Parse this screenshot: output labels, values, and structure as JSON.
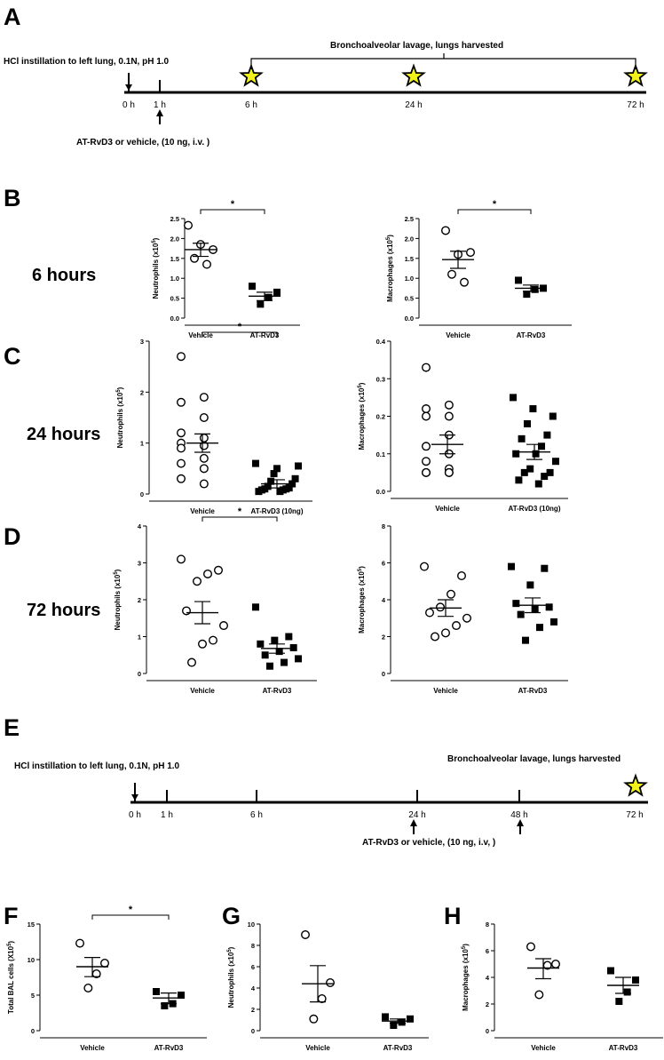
{
  "panel_letters": [
    "A",
    "B",
    "C",
    "D",
    "E",
    "F",
    "G",
    "H"
  ],
  "row_labels": {
    "b": "6 hours",
    "c": "24 hours",
    "d": "72 hours"
  },
  "timeline_a": {
    "instillation": "HCl instillation to left lung, 0.1N, pH 1.0",
    "treatment": "AT-RvD3 or vehicle, (10 ng, i.v. )",
    "harvest": "Bronchoalveolar lavage, lungs harvested",
    "ticks": [
      "0 h",
      "1 h",
      "6 h",
      "24 h",
      "72 h"
    ]
  },
  "timeline_e": {
    "instillation": "HCl instillation to left lung, 0.1N, pH 1.0",
    "treatment": "AT-RvD3 or vehicle, (10 ng, i.v, )",
    "harvest": "Bronchoalveolar lavage, lungs harvested",
    "ticks": [
      "0 h",
      "1 h",
      "6 h",
      "24 h",
      "48 h",
      "72 h"
    ]
  },
  "colors": {
    "star_fill": "#f2f21a",
    "marker": "#000000"
  },
  "chart_data": [
    {
      "id": "b1",
      "type": "scatter",
      "ylabel": "Neutrophils (x10^5)",
      "ylim": [
        0,
        2.5
      ],
      "yticks": [
        "0.0",
        "0.5",
        "1.0",
        "1.5",
        "2.0",
        "2.5"
      ],
      "categories": [
        "Vehicle",
        "AT-RvD3"
      ],
      "significance": "*",
      "series": [
        {
          "values": [
            2.33,
            1.85,
            1.72,
            1.5,
            1.35
          ],
          "mean": 1.72,
          "sem_low": 1.55,
          "sem_high": 1.88
        },
        {
          "values": [
            0.8,
            0.65,
            0.52,
            0.35
          ],
          "mean": 0.55,
          "sem_low": 0.44,
          "sem_high": 0.65
        }
      ]
    },
    {
      "id": "b2",
      "type": "scatter",
      "ylabel": "Macrophages (x10^5)",
      "ylim": [
        0,
        2.5
      ],
      "yticks": [
        "0.0",
        "0.5",
        "1.0",
        "1.5",
        "2.0",
        "2.5"
      ],
      "categories": [
        "Vehicle",
        "AT-RvD3"
      ],
      "significance": "*",
      "series": [
        {
          "values": [
            2.2,
            1.6,
            1.65,
            1.1,
            0.9
          ],
          "mean": 1.47,
          "sem_low": 1.25,
          "sem_high": 1.68
        },
        {
          "values": [
            0.95,
            0.75,
            0.72,
            0.6
          ],
          "mean": 0.75,
          "sem_low": 0.67,
          "sem_high": 0.83
        }
      ]
    },
    {
      "id": "c1",
      "type": "scatter",
      "ylabel": "Neutrophils (x10^5)",
      "ylim": [
        0,
        3
      ],
      "yticks": [
        "0",
        "1",
        "2",
        "3"
      ],
      "categories": [
        "Vehicle",
        "AT-RvD3 (10ng)"
      ],
      "significance": "*",
      "series": [
        {
          "values": [
            2.7,
            1.9,
            1.8,
            1.5,
            1.2,
            1.1,
            1.0,
            0.95,
            0.9,
            0.7,
            0.6,
            0.5,
            0.3,
            0.2
          ],
          "mean": 1.0,
          "sem_low": 0.82,
          "sem_high": 1.18
        },
        {
          "values": [
            0.6,
            0.5,
            0.55,
            0.4,
            0.3,
            0.25,
            0.2,
            0.15,
            0.12,
            0.1,
            0.1,
            0.08,
            0.08,
            0.05,
            0.05
          ],
          "mean": 0.2,
          "sem_low": 0.12,
          "sem_high": 0.28
        }
      ]
    },
    {
      "id": "c2",
      "type": "scatter",
      "ylabel": "Macrophages (x10^5)",
      "ylim": [
        0,
        0.4
      ],
      "yticks": [
        "0.0",
        "0.1",
        "0.2",
        "0.3",
        "0.4"
      ],
      "categories": [
        "Vehicle",
        "AT-RvD3 (10ng)"
      ],
      "significance": "",
      "series": [
        {
          "values": [
            0.33,
            0.23,
            0.22,
            0.2,
            0.2,
            0.15,
            0.12,
            0.1,
            0.08,
            0.06,
            0.05,
            0.05,
            0.05,
            0.05
          ],
          "mean": 0.125,
          "sem_low": 0.1,
          "sem_high": 0.15
        },
        {
          "values": [
            0.25,
            0.22,
            0.2,
            0.18,
            0.15,
            0.14,
            0.12,
            0.1,
            0.1,
            0.08,
            0.06,
            0.05,
            0.05,
            0.04,
            0.03,
            0.02
          ],
          "mean": 0.105,
          "sem_low": 0.085,
          "sem_high": 0.125
        }
      ]
    },
    {
      "id": "d1",
      "type": "scatter",
      "ylabel": "Neutrophils (x10^5)",
      "ylim": [
        0,
        4
      ],
      "yticks": [
        "0",
        "1",
        "2",
        "3",
        "4"
      ],
      "categories": [
        "Vehicle",
        "AT-RvD3"
      ],
      "significance": "*",
      "series": [
        {
          "values": [
            3.1,
            2.8,
            2.7,
            2.5,
            1.7,
            1.3,
            0.9,
            0.8,
            0.3
          ],
          "mean": 1.65,
          "sem_low": 1.35,
          "sem_high": 1.95
        },
        {
          "values": [
            1.8,
            1.0,
            0.9,
            0.8,
            0.7,
            0.6,
            0.5,
            0.4,
            0.3,
            0.2
          ],
          "mean": 0.68,
          "sem_low": 0.55,
          "sem_high": 0.8
        }
      ]
    },
    {
      "id": "d2",
      "type": "scatter",
      "ylabel": "Macrophages (x10^5)",
      "ylim": [
        0,
        8
      ],
      "yticks": [
        "0",
        "2",
        "4",
        "6",
        "8"
      ],
      "categories": [
        "Vehicle",
        "AT-RvD3"
      ],
      "significance": "",
      "series": [
        {
          "values": [
            5.8,
            5.3,
            4.3,
            3.6,
            3.3,
            3.0,
            2.6,
            2.2,
            2.0
          ],
          "mean": 3.55,
          "sem_low": 3.1,
          "sem_high": 4.0
        },
        {
          "values": [
            5.8,
            5.7,
            4.8,
            3.8,
            3.6,
            3.5,
            3.2,
            2.8,
            2.5,
            1.8
          ],
          "mean": 3.7,
          "sem_low": 3.3,
          "sem_high": 4.1
        }
      ]
    },
    {
      "id": "f",
      "type": "scatter",
      "ylabel": "Total BAL cells (X10^5)",
      "ylim": [
        0,
        15
      ],
      "yticks": [
        "0",
        "5",
        "10",
        "15"
      ],
      "categories": [
        "Vehicle",
        "AT-RvD3"
      ],
      "significance": "*",
      "series": [
        {
          "values": [
            12.3,
            9.5,
            8.0,
            6.0
          ],
          "mean": 9.0,
          "sem_low": 7.6,
          "sem_high": 10.3
        },
        {
          "values": [
            5.5,
            5.0,
            3.8,
            3.5
          ],
          "mean": 4.6,
          "sem_low": 3.8,
          "sem_high": 5.3
        }
      ]
    },
    {
      "id": "g",
      "type": "scatter",
      "ylabel": "Neutrophils (x10^5)",
      "ylim": [
        0,
        10
      ],
      "yticks": [
        "0",
        "2",
        "4",
        "6",
        "8",
        "10"
      ],
      "categories": [
        "Vehicle",
        "AT-RvD3"
      ],
      "significance": "",
      "series": [
        {
          "values": [
            9.0,
            4.5,
            3.0,
            1.1
          ],
          "mean": 4.4,
          "sem_low": 2.7,
          "sem_high": 6.1
        },
        {
          "values": [
            1.3,
            1.1,
            0.8,
            0.5
          ],
          "mean": 0.9,
          "sem_low": 0.7,
          "sem_high": 1.1
        }
      ]
    },
    {
      "id": "h",
      "type": "scatter",
      "ylabel": "Macrophages (x10^5)",
      "ylim": [
        0,
        8
      ],
      "yticks": [
        "0",
        "2",
        "4",
        "6",
        "8"
      ],
      "categories": [
        "Vehicle",
        "AT-RvD3"
      ],
      "significance": "",
      "series": [
        {
          "values": [
            6.3,
            5.0,
            4.9,
            2.7
          ],
          "mean": 4.7,
          "sem_low": 3.9,
          "sem_high": 5.4
        },
        {
          "values": [
            4.5,
            3.8,
            2.9,
            2.2
          ],
          "mean": 3.4,
          "sem_low": 2.8,
          "sem_high": 4.0
        }
      ]
    }
  ]
}
